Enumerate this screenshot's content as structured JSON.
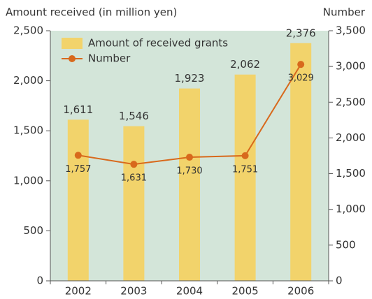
{
  "chart_data": {
    "type": "bar",
    "y_axis_label": "Amount received (in million yen)",
    "y2_axis_label": "Number",
    "categories": [
      "2002",
      "2003",
      "2004",
      "2005",
      "2006"
    ],
    "series": [
      {
        "name": "Amount of received grants",
        "type": "bar",
        "color": "#f2d36b",
        "values": [
          1611,
          1546,
          1923,
          2062,
          2376
        ],
        "value_labels": [
          "1,611",
          "1,546",
          "1,923",
          "2,062",
          "2,376"
        ]
      },
      {
        "name": "Number",
        "type": "line",
        "color": "#d8691c",
        "axis": "y2",
        "values": [
          1757,
          1631,
          1730,
          1751,
          3029
        ],
        "value_labels": [
          "1,757",
          "1,631",
          "1,730",
          "1,751",
          "3,029"
        ]
      }
    ],
    "ylim": [
      0,
      2500
    ],
    "yticks": [
      0,
      500,
      {
        "value": 1000,
        "label": "1,000"
      },
      {
        "value": 1500,
        "label": "1,500"
      },
      {
        "value": 2000,
        "label": "2,000"
      },
      {
        "value": 2500,
        "label": "2,500"
      }
    ],
    "y2lim": [
      0,
      3500
    ],
    "y2ticks": [
      0,
      500,
      {
        "value": 1000,
        "label": "1,000"
      },
      {
        "value": 1500,
        "label": "1,500"
      },
      {
        "value": 2000,
        "label": "2,000"
      },
      {
        "value": 2500,
        "label": "2,500"
      },
      {
        "value": 3000,
        "label": "3,000"
      },
      {
        "value": 3500,
        "label": "3,500"
      }
    ],
    "legend": "upper left",
    "plot_background": "#d3e5d9"
  }
}
